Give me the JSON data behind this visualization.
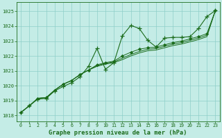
{
  "title": "Graphe pression niveau de la mer (hPa)",
  "bg_color": "#c4ece6",
  "grid_color": "#8ecec8",
  "line_color": "#1a6b1a",
  "xlim": [
    -0.5,
    23.5
  ],
  "ylim": [
    1017.6,
    1025.6
  ],
  "yticks": [
    1018,
    1019,
    1020,
    1021,
    1022,
    1023,
    1024,
    1025
  ],
  "xticks": [
    0,
    1,
    2,
    3,
    4,
    5,
    6,
    7,
    8,
    9,
    10,
    11,
    12,
    13,
    14,
    15,
    16,
    17,
    18,
    19,
    20,
    21,
    22,
    23
  ],
  "series0": [
    1018.2,
    1018.65,
    1019.1,
    1019.15,
    1019.65,
    1019.95,
    1020.2,
    1020.6,
    1021.3,
    1022.5,
    1021.1,
    1021.55,
    1023.35,
    1024.05,
    1023.85,
    1023.05,
    1022.6,
    1023.2,
    1023.25,
    1023.25,
    1023.3,
    1023.85,
    1024.65,
    1025.05
  ],
  "series1": [
    1018.2,
    1018.65,
    1019.15,
    1019.2,
    1019.7,
    1020.1,
    1020.35,
    1020.75,
    1021.05,
    1021.4,
    1021.55,
    1021.65,
    1022.0,
    1022.25,
    1022.45,
    1022.55,
    1022.6,
    1022.75,
    1022.9,
    1023.0,
    1023.15,
    1023.3,
    1023.5,
    1025.05
  ],
  "series2": [
    1018.2,
    1018.65,
    1019.15,
    1019.2,
    1019.7,
    1020.1,
    1020.35,
    1020.75,
    1021.05,
    1021.35,
    1021.5,
    1021.6,
    1021.85,
    1022.1,
    1022.3,
    1022.45,
    1022.5,
    1022.65,
    1022.8,
    1022.9,
    1023.05,
    1023.2,
    1023.4,
    1025.05
  ],
  "series3": [
    1018.2,
    1018.65,
    1019.15,
    1019.2,
    1019.7,
    1020.1,
    1020.35,
    1020.75,
    1021.05,
    1021.3,
    1021.45,
    1021.55,
    1021.75,
    1022.0,
    1022.2,
    1022.35,
    1022.4,
    1022.55,
    1022.7,
    1022.8,
    1022.95,
    1023.1,
    1023.3,
    1025.05
  ]
}
